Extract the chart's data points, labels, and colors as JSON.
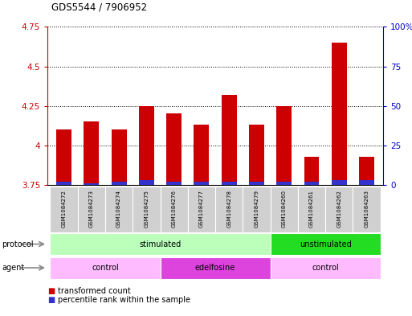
{
  "title": "GDS5544 / 7906952",
  "samples": [
    "GSM1084272",
    "GSM1084273",
    "GSM1084274",
    "GSM1084275",
    "GSM1084276",
    "GSM1084277",
    "GSM1084278",
    "GSM1084279",
    "GSM1084260",
    "GSM1084261",
    "GSM1084262",
    "GSM1084263"
  ],
  "transformed_count": [
    4.1,
    4.15,
    4.1,
    4.25,
    4.2,
    4.13,
    4.32,
    4.13,
    4.25,
    3.93,
    4.65,
    3.93
  ],
  "percentile_rank": [
    3.77,
    3.76,
    3.77,
    3.78,
    3.77,
    3.77,
    3.77,
    3.77,
    3.77,
    3.77,
    3.78,
    3.78
  ],
  "baseline": 3.75,
  "ylim": [
    3.75,
    4.75
  ],
  "yticks_left": [
    3.75,
    4.0,
    4.25,
    4.5,
    4.75
  ],
  "ytick_labels_left": [
    "3.75",
    "4",
    "4.25",
    "4.5",
    "4.75"
  ],
  "yticks_right_pct": [
    0,
    25,
    50,
    75,
    100
  ],
  "ytick_labels_right": [
    "0",
    "25",
    "50",
    "75",
    "100%"
  ],
  "bar_color_red": "#cc0000",
  "bar_color_blue": "#3333cc",
  "protocol_groups": [
    {
      "label": "stimulated",
      "start": 0,
      "end": 7,
      "color": "#bbffbb"
    },
    {
      "label": "unstimulated",
      "start": 8,
      "end": 11,
      "color": "#22dd22"
    }
  ],
  "agent_groups": [
    {
      "label": "control",
      "start": 0,
      "end": 3,
      "color": "#ffbbff"
    },
    {
      "label": "edelfosine",
      "start": 4,
      "end": 7,
      "color": "#dd44dd"
    },
    {
      "label": "control",
      "start": 8,
      "end": 11,
      "color": "#ffbbff"
    }
  ],
  "legend_red_label": "transformed count",
  "legend_blue_label": "percentile rank within the sample",
  "protocol_label": "protocol",
  "agent_label": "agent",
  "label_color_left": "#cc0000",
  "label_color_right": "#0000cc",
  "background_color": "#ffffff",
  "bar_width": 0.55
}
